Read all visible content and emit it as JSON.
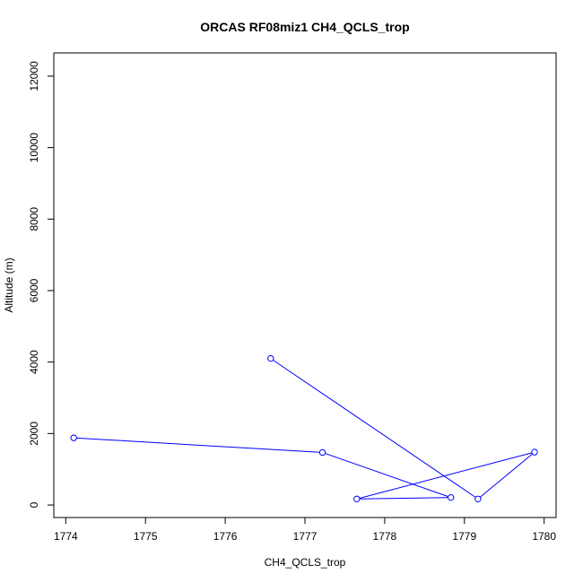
{
  "chart_data": {
    "type": "line",
    "title": "ORCAS RF08miz1 CH4_QCLS_trop",
    "xlabel": "CH4_QCLS_trop",
    "ylabel": "Altitude (m)",
    "xlim": [
      1773.85,
      1780.15
    ],
    "ylim": [
      -350,
      12650
    ],
    "x_ticks": [
      1774,
      1775,
      1776,
      1777,
      1778,
      1779,
      1780
    ],
    "x_tick_labels": [
      "1774",
      "1775",
      "1776",
      "1777",
      "1778",
      "1779",
      "1780"
    ],
    "y_ticks": [
      0,
      2000,
      4000,
      6000,
      8000,
      10000,
      12000
    ],
    "y_tick_labels": [
      "0",
      "2000",
      "4000",
      "6000",
      "8000",
      "10000",
      "12000"
    ],
    "grid": false,
    "series": [
      {
        "color": "#0000ff",
        "marker": "open-circle",
        "points": [
          {
            "x": 1776.57,
            "y": 4100
          },
          {
            "x": 1779.17,
            "y": 170
          },
          {
            "x": 1779.88,
            "y": 1480
          },
          {
            "x": 1777.65,
            "y": 170
          },
          {
            "x": 1778.83,
            "y": 210
          },
          {
            "x": 1777.22,
            "y": 1470
          },
          {
            "x": 1774.1,
            "y": 1880
          }
        ]
      }
    ]
  }
}
